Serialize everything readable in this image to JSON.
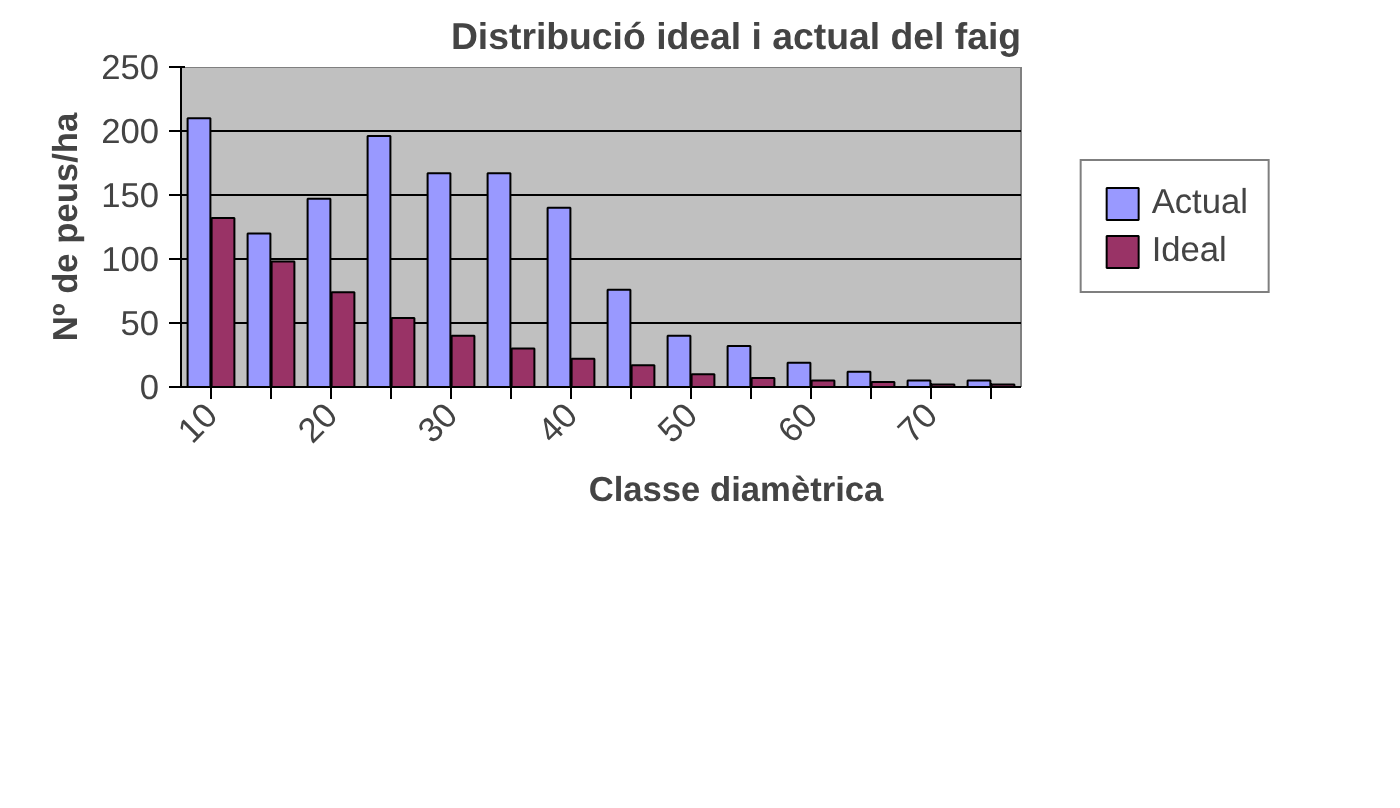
{
  "chart_data": {
    "type": "bar",
    "title": "Distribució ideal i actual del faig",
    "xlabel": "Classe diamètrica",
    "ylabel": "Nº de peus/ha",
    "categories": [
      "10",
      null,
      "20",
      null,
      "30",
      null,
      "40",
      null,
      "50",
      null,
      "60",
      null,
      "70",
      null
    ],
    "series": [
      {
        "name": "Actual",
        "color": "#9999ff",
        "values": [
          210,
          120,
          147,
          196,
          167,
          167,
          140,
          76,
          40,
          32,
          19,
          12,
          5,
          5
        ]
      },
      {
        "name": "Ideal",
        "color": "#993366",
        "values": [
          132,
          98,
          74,
          54,
          40,
          30,
          22,
          17,
          10,
          7,
          5,
          4,
          2,
          2
        ]
      }
    ],
    "ylim": [
      0,
      250
    ],
    "yticks": [
      0,
      50,
      100,
      150,
      200,
      250
    ],
    "grid": "y",
    "legend": "right"
  }
}
